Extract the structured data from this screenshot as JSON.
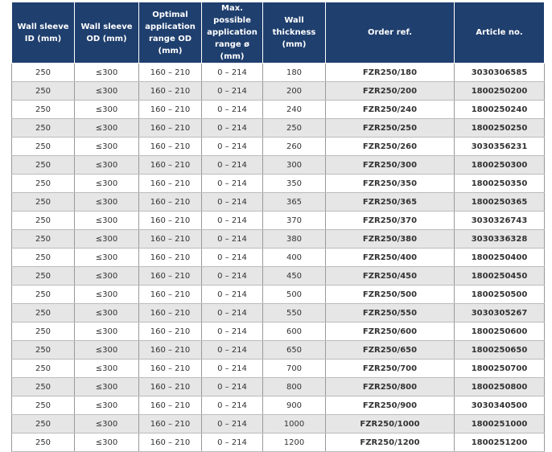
{
  "table": {
    "header": [
      "Wall sleeve ID (mm)",
      "Wall sleeve OD (mm)",
      "Optimal application range OD (mm)",
      "Max. possible application range ø (mm)",
      "Wall thickness (mm)",
      "Order ref.",
      "Article no."
    ],
    "rows": [
      [
        "250",
        "≤300",
        "160 – 210",
        "0 – 214",
        "180",
        "FZR250/180",
        "3030306585"
      ],
      [
        "250",
        "≤300",
        "160 – 210",
        "0 – 214",
        "200",
        "FZR250/200",
        "1800250200"
      ],
      [
        "250",
        "≤300",
        "160 – 210",
        "0 – 214",
        "240",
        "FZR250/240",
        "1800250240"
      ],
      [
        "250",
        "≤300",
        "160 – 210",
        "0 – 214",
        "250",
        "FZR250/250",
        "1800250250"
      ],
      [
        "250",
        "≤300",
        "160 – 210",
        "0 – 214",
        "260",
        "FZR250/260",
        "3030356231"
      ],
      [
        "250",
        "≤300",
        "160 – 210",
        "0 – 214",
        "300",
        "FZR250/300",
        "1800250300"
      ],
      [
        "250",
        "≤300",
        "160 – 210",
        "0 – 214",
        "350",
        "FZR250/350",
        "1800250350"
      ],
      [
        "250",
        "≤300",
        "160 – 210",
        "0 – 214",
        "365",
        "FZR250/365",
        "1800250365"
      ],
      [
        "250",
        "≤300",
        "160 – 210",
        "0 – 214",
        "370",
        "FZR250/370",
        "3030326743"
      ],
      [
        "250",
        "≤300",
        "160 – 210",
        "0 – 214",
        "380",
        "FZR250/380",
        "3030336328"
      ],
      [
        "250",
        "≤300",
        "160 – 210",
        "0 – 214",
        "400",
        "FZR250/400",
        "1800250400"
      ],
      [
        "250",
        "≤300",
        "160 – 210",
        "0 – 214",
        "450",
        "FZR250/450",
        "1800250450"
      ],
      [
        "250",
        "≤300",
        "160 – 210",
        "0 – 214",
        "500",
        "FZR250/500",
        "1800250500"
      ],
      [
        "250",
        "≤300",
        "160 – 210",
        "0 – 214",
        "550",
        "FZR250/550",
        "3030305267"
      ],
      [
        "250",
        "≤300",
        "160 – 210",
        "0 – 214",
        "600",
        "FZR250/600",
        "1800250600"
      ],
      [
        "250",
        "≤300",
        "160 – 210",
        "0 – 214",
        "650",
        "FZR250/650",
        "1800250650"
      ],
      [
        "250",
        "≤300",
        "160 – 210",
        "0 – 214",
        "700",
        "FZR250/700",
        "1800250700"
      ],
      [
        "250",
        "≤300",
        "160 – 210",
        "0 – 214",
        "800",
        "FZR250/800",
        "1800250800"
      ],
      [
        "250",
        "≤300",
        "160 – 210",
        "0 – 214",
        "900",
        "FZR250/900",
        "3030340500"
      ],
      [
        "250",
        "≤300",
        "160 – 210",
        "0 – 214",
        "1000",
        "FZR250/1000",
        "1800251000"
      ],
      [
        "250",
        "≤300",
        "160 – 210",
        "0 – 214",
        "1200",
        "FZR250/1200",
        "1800251200"
      ]
    ]
  }
}
